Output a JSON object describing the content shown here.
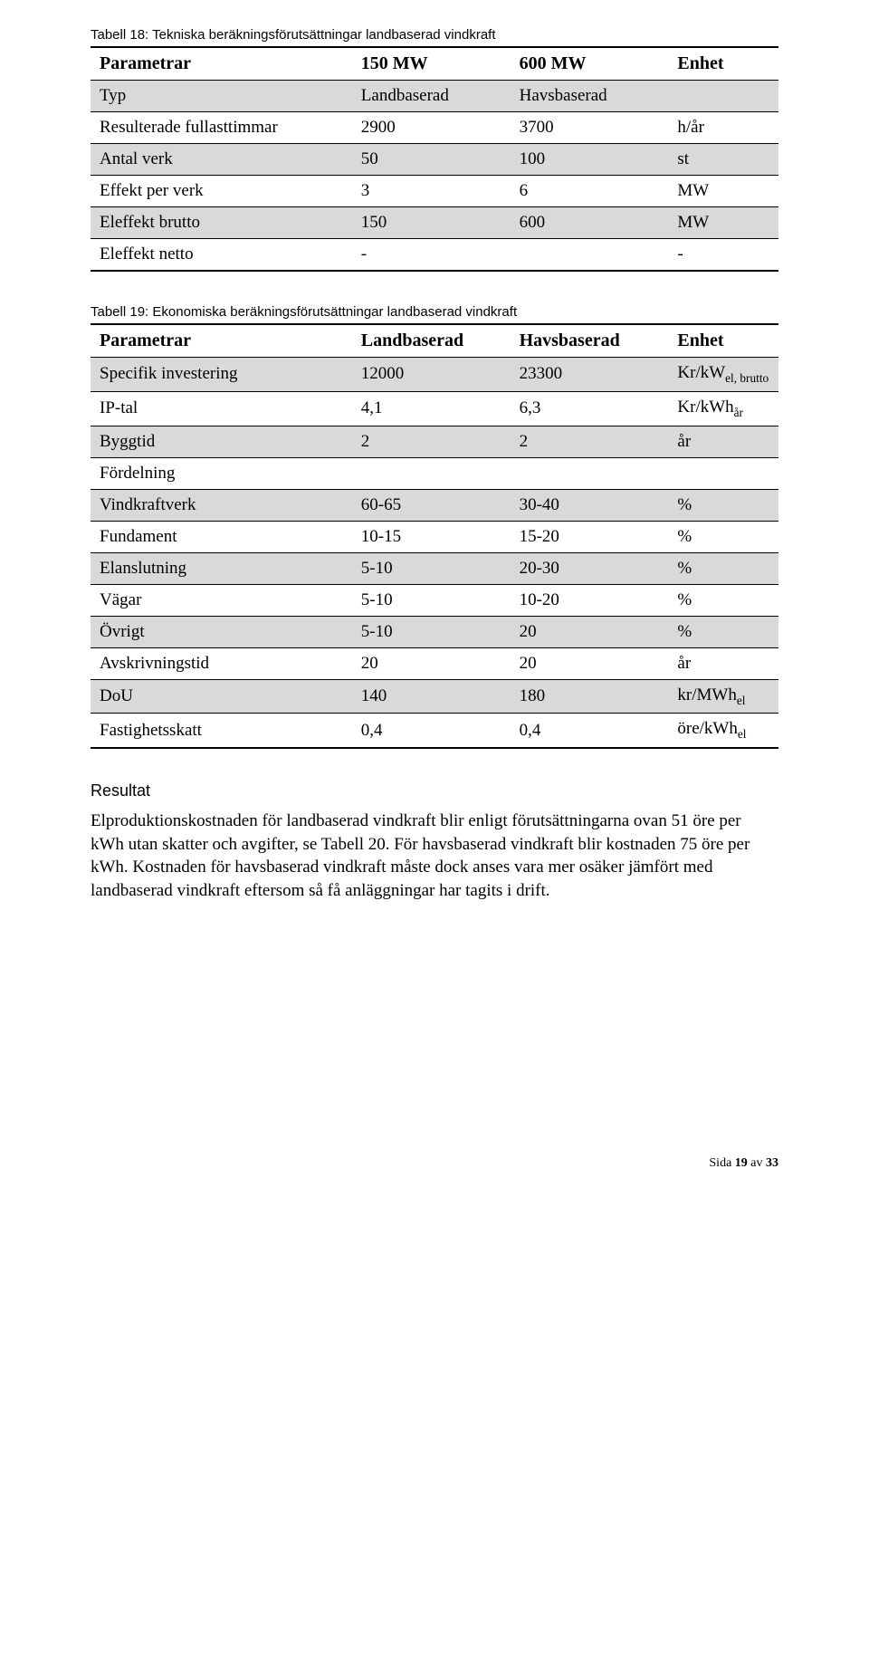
{
  "table18": {
    "caption": "Tabell 18: Tekniska beräkningsförutsättningar landbaserad vindkraft",
    "headers": [
      "Parametrar",
      "150 MW",
      "600 MW",
      "Enhet"
    ],
    "rows": [
      {
        "label": "Typ",
        "c1": "Landbaserad",
        "c2": "Havsbaserad",
        "unit": "",
        "shade": true
      },
      {
        "label": "Resulterade fullasttimmar",
        "c1": "2900",
        "c2": "3700",
        "unit": "h/år",
        "shade": false
      },
      {
        "label": "Antal verk",
        "c1": "50",
        "c2": "100",
        "unit": "st",
        "shade": true
      },
      {
        "label": "Effekt per verk",
        "c1": "3",
        "c2": "6",
        "unit": "MW",
        "shade": false
      },
      {
        "label": "Eleffekt brutto",
        "c1": "150",
        "c2": "600",
        "unit": "MW",
        "shade": true
      },
      {
        "label": "Eleffekt netto",
        "c1": "-",
        "c2": "",
        "unit": "-",
        "shade": false
      }
    ]
  },
  "table19": {
    "caption": "Tabell 19: Ekonomiska beräkningsförutsättningar landbaserad vindkraft",
    "headers": [
      "Parametrar",
      "Landbaserad",
      "Havsbaserad",
      "Enhet"
    ],
    "rows": [
      {
        "label": "Specifik investering",
        "c1": "12000",
        "c2": "23300",
        "unit_html": "Kr/kW<sub>el, brutto</sub>",
        "shade": true
      },
      {
        "label": "IP-tal",
        "c1": "4,1",
        "c2": "6,3",
        "unit_html": "Kr/kWh<sub>år</sub>",
        "shade": false
      },
      {
        "label": "Byggtid",
        "c1": "2",
        "c2": "2",
        "unit_html": "år",
        "shade": true
      },
      {
        "label": "Fördelning",
        "c1": "",
        "c2": "",
        "unit_html": "",
        "shade": false
      },
      {
        "label": "Vindkraftverk",
        "c1": "60-65",
        "c2": "30-40",
        "unit_html": "%",
        "shade": true
      },
      {
        "label": "Fundament",
        "c1": "10-15",
        "c2": "15-20",
        "unit_html": "%",
        "shade": false
      },
      {
        "label": "Elanslutning",
        "c1": "5-10",
        "c2": "20-30",
        "unit_html": "%",
        "shade": true
      },
      {
        "label": "Vägar",
        "c1": "5-10",
        "c2": "10-20",
        "unit_html": "%",
        "shade": false
      },
      {
        "label": "Övrigt",
        "c1": "5-10",
        "c2": "20",
        "unit_html": "%",
        "shade": true
      },
      {
        "label": "Avskrivningstid",
        "c1": "20",
        "c2": "20",
        "unit_html": "år",
        "shade": false
      },
      {
        "label": "DoU",
        "c1": "140",
        "c2": "180",
        "unit_html": "kr/MWh<sub>el</sub>",
        "shade": true
      },
      {
        "label": "Fastighetsskatt",
        "c1": "0,4",
        "c2": "0,4",
        "unit_html": "öre/kWh<sub>el</sub>",
        "shade": false
      }
    ]
  },
  "result": {
    "title": "Resultat",
    "body": "Elproduktionskostnaden för landbaserad vindkraft blir enligt förutsättningarna ovan 51 öre per kWh utan skatter och avgifter, se Tabell 20. För havsbaserad vindkraft blir kostnaden 75 öre per kWh. Kostnaden för havsbaserad vindkraft måste dock anses vara mer osäker jämfört med landbaserad vindkraft eftersom så få anläggningar har tagits i drift."
  },
  "footer": {
    "prefix": "Sida ",
    "page": "19",
    "mid": " av ",
    "total": "33"
  },
  "col_widths": [
    "38%",
    "23%",
    "23%",
    "16%"
  ],
  "colors": {
    "shade": "#d9d9d9",
    "border": "#000000",
    "background": "#ffffff"
  }
}
